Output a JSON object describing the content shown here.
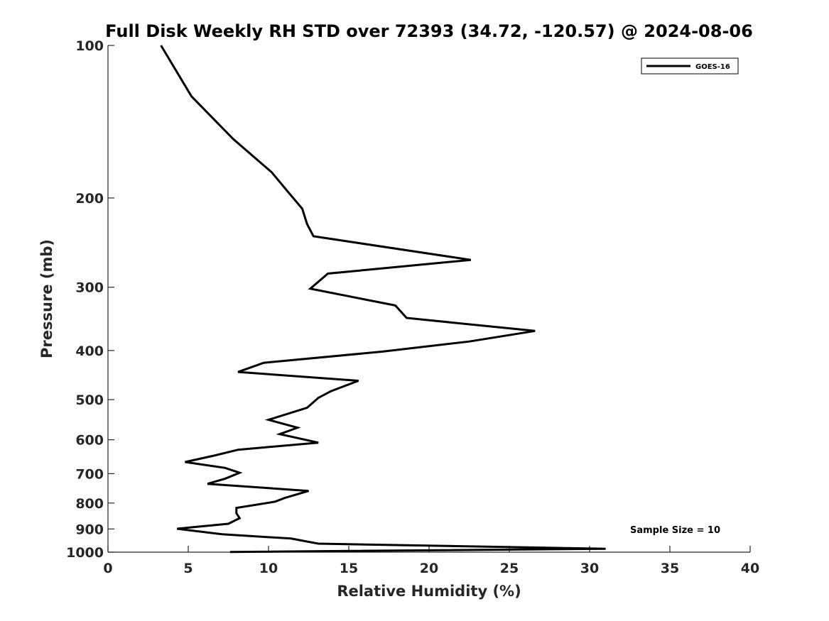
{
  "chart_data": {
    "type": "line",
    "title": "Full Disk Weekly RH STD over 72393 (34.72, -120.57) @ 2024-08-06",
    "xlabel": "Relative Humidity (%)",
    "ylabel": "Pressure (mb)",
    "xlim": [
      0,
      40
    ],
    "ylim": [
      100,
      1000
    ],
    "y_scale": "log",
    "y_reversed": true,
    "x_ticks": [
      0,
      5,
      10,
      15,
      20,
      25,
      30,
      35,
      40
    ],
    "y_ticks": [
      100,
      200,
      300,
      400,
      500,
      600,
      700,
      800,
      900,
      1000
    ],
    "grid": false,
    "legend_position": "top-right",
    "series": [
      {
        "name": "GOES-16",
        "color": "#000000",
        "points": [
          [
            3.3,
            100
          ],
          [
            5.2,
            126
          ],
          [
            7.8,
            153
          ],
          [
            10.2,
            178
          ],
          [
            11.3,
            196
          ],
          [
            12.1,
            210
          ],
          [
            12.4,
            225
          ],
          [
            12.8,
            238
          ],
          [
            22.6,
            265
          ],
          [
            13.7,
            282
          ],
          [
            12.6,
            302
          ],
          [
            17.9,
            326
          ],
          [
            18.6,
            345
          ],
          [
            26.6,
            366
          ],
          [
            22.5,
            384
          ],
          [
            17.1,
            402
          ],
          [
            9.7,
            423
          ],
          [
            8.1,
            441
          ],
          [
            15.6,
            459
          ],
          [
            13.9,
            481
          ],
          [
            13.1,
            496
          ],
          [
            12.4,
            519
          ],
          [
            10.0,
            548
          ],
          [
            11.8,
            568
          ],
          [
            10.7,
            585
          ],
          [
            13.1,
            608
          ],
          [
            8.1,
            628
          ],
          [
            6.6,
            645
          ],
          [
            4.8,
            664
          ],
          [
            7.3,
            682
          ],
          [
            8.2,
            697
          ],
          [
            7.3,
            716
          ],
          [
            6.2,
            733
          ],
          [
            12.5,
            757
          ],
          [
            11.0,
            782
          ],
          [
            10.4,
            795
          ],
          [
            8.0,
            818
          ],
          [
            8.0,
            838
          ],
          [
            8.2,
            857
          ],
          [
            7.5,
            879
          ],
          [
            4.3,
            899
          ],
          [
            7.1,
            922
          ],
          [
            11.4,
            940
          ],
          [
            13.1,
            962
          ],
          [
            31.0,
            985
          ],
          [
            7.6,
            999
          ]
        ]
      }
    ],
    "annotations": [
      "Sample Size = 10"
    ]
  }
}
